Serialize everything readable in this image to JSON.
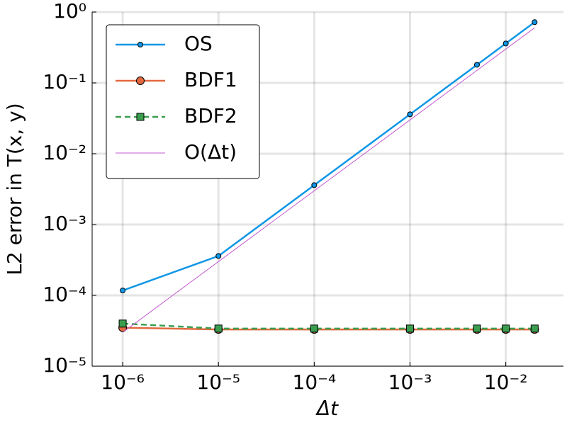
{
  "chart_data": {
    "type": "line",
    "xlabel": "Δt",
    "ylabel": "L2 error in T(x, y)",
    "x": [
      1e-06,
      1e-05,
      0.0001,
      0.001,
      0.005,
      0.01,
      0.02
    ],
    "series": [
      {
        "name": "OS",
        "color": "#0f96e6",
        "marker": "circle",
        "linestyle": "solid",
        "values": [
          0.000117,
          0.00036,
          0.0036,
          0.036,
          0.18,
          0.36,
          0.72
        ]
      },
      {
        "name": "BDF1",
        "color": "#e2693f",
        "marker": "circle",
        "linestyle": "solid",
        "values": [
          3.5e-05,
          3.3e-05,
          3.3e-05,
          3.3e-05,
          3.3e-05,
          3.3e-05,
          3.3e-05
        ]
      },
      {
        "name": "BDF2",
        "color": "#3a9e4e",
        "marker": "square",
        "linestyle": "dashed",
        "values": [
          4e-05,
          3.4e-05,
          3.4e-05,
          3.4e-05,
          3.4e-05,
          3.4e-05,
          3.4e-05
        ]
      },
      {
        "name": "O(Δt)",
        "color": "#c35bd0",
        "linestyle": "thin",
        "values": [
          3e-05,
          0.0003,
          0.003,
          0.03,
          0.15,
          0.3,
          0.6
        ]
      }
    ],
    "xlog": true,
    "ylog": true,
    "xlim": [
      4.8e-07,
      0.04
    ],
    "ylim": [
      1e-05,
      1
    ],
    "xticks": [
      {
        "value": 1e-06,
        "label": "10⁻⁶"
      },
      {
        "value": 1e-05,
        "label": "10⁻⁵"
      },
      {
        "value": 0.0001,
        "label": "10⁻⁴"
      },
      {
        "value": 0.001,
        "label": "10⁻³"
      },
      {
        "value": 0.01,
        "label": "10⁻²"
      }
    ],
    "yticks": [
      {
        "value": 1e-05,
        "label": "10⁻⁵"
      },
      {
        "value": 0.0001,
        "label": "10⁻⁴"
      },
      {
        "value": 0.001,
        "label": "10⁻³"
      },
      {
        "value": 0.01,
        "label": "10⁻²"
      },
      {
        "value": 0.1,
        "label": "10⁻¹"
      },
      {
        "value": 1,
        "label": "10⁰"
      }
    ],
    "grid": true,
    "legend": "upper left"
  }
}
